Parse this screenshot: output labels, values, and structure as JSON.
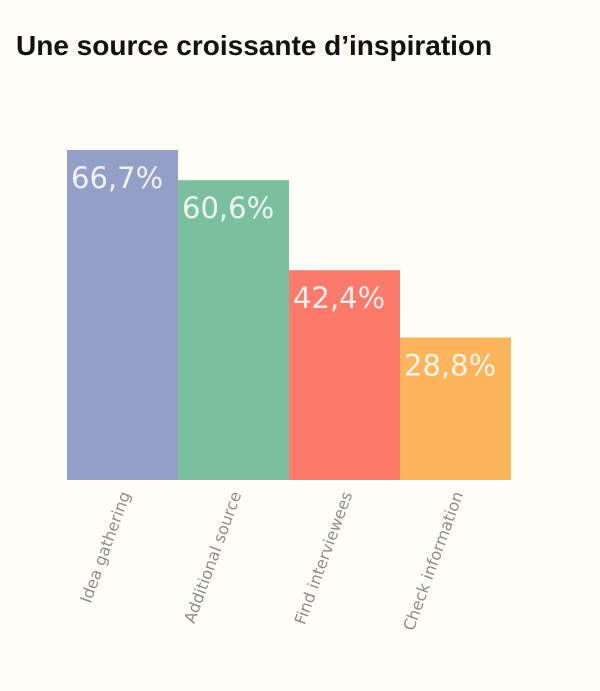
{
  "chart_data": {
    "type": "bar",
    "title": "Une source croissante d’inspiration",
    "xlabel": "",
    "ylabel": "",
    "ylim": [
      0,
      66.7
    ],
    "grid": false,
    "categories": [
      "Idea gathering",
      "Additional source",
      "Find interviewees",
      "Check information"
    ],
    "values": [
      66.7,
      60.6,
      42.4,
      28.8
    ],
    "value_labels": [
      "66,7%",
      "60,6%",
      "42,4%",
      "28,8%"
    ],
    "colors": [
      "#939fc6",
      "#7bbf9e",
      "#fb7a6c",
      "#fdb55d"
    ]
  }
}
